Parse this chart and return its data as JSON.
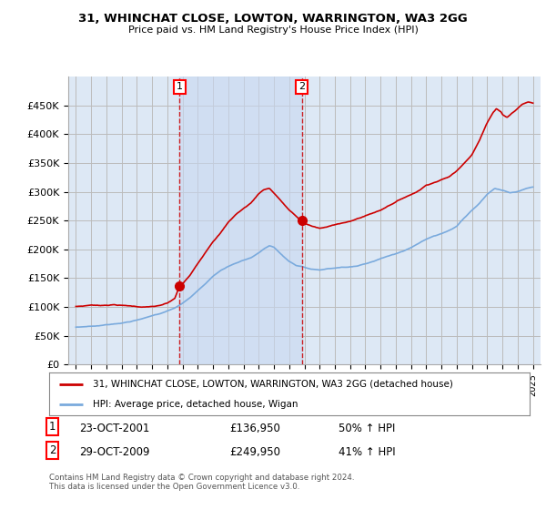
{
  "title": "31, WHINCHAT CLOSE, LOWTON, WARRINGTON, WA3 2GG",
  "subtitle": "Price paid vs. HM Land Registry's House Price Index (HPI)",
  "ylim": [
    0,
    500000
  ],
  "yticks": [
    0,
    50000,
    100000,
    150000,
    200000,
    250000,
    300000,
    350000,
    400000,
    450000
  ],
  "ytick_labels": [
    "£0",
    "£50K",
    "£100K",
    "£150K",
    "£200K",
    "£250K",
    "£300K",
    "£350K",
    "£400K",
    "£450K"
  ],
  "background_color": "#ffffff",
  "plot_bg_color": "#dde8f5",
  "shade_color": "#c8d8f0",
  "grid_color": "#bbbbbb",
  "red_color": "#cc0000",
  "blue_color": "#7aaadd",
  "sale1_date": "23-OCT-2001",
  "sale1_price": 136950,
  "sale1_label": "50% ↑ HPI",
  "sale2_date": "29-OCT-2009",
  "sale2_price": 249950,
  "sale2_label": "41% ↑ HPI",
  "legend_label_red": "31, WHINCHAT CLOSE, LOWTON, WARRINGTON, WA3 2GG (detached house)",
  "legend_label_blue": "HPI: Average price, detached house, Wigan",
  "footer": "Contains HM Land Registry data © Crown copyright and database right 2024.\nThis data is licensed under the Open Government Licence v3.0.",
  "sale1_x": 2001.81,
  "sale2_x": 2009.83
}
